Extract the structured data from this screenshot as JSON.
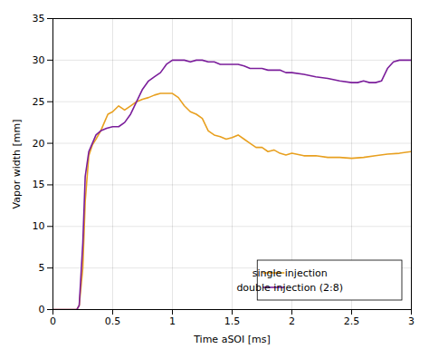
{
  "chart_data": {
    "type": "line",
    "xlabel": "Time aSOI [ms]",
    "ylabel": "Vapor width [mm]",
    "xlim": [
      0,
      3
    ],
    "ylim": [
      0,
      35
    ],
    "xticks": [
      0,
      0.5,
      1,
      1.5,
      2,
      2.5,
      3
    ],
    "yticks": [
      0,
      5,
      10,
      15,
      20,
      25,
      30,
      35
    ],
    "grid": true,
    "legend": "lower right",
    "series": [
      {
        "name": "single injection",
        "color": "#E8A020",
        "x": [
          0.0,
          0.05,
          0.1,
          0.15,
          0.2,
          0.22,
          0.25,
          0.27,
          0.3,
          0.33,
          0.36,
          0.4,
          0.43,
          0.46,
          0.5,
          0.55,
          0.6,
          0.65,
          0.7,
          0.75,
          0.8,
          0.85,
          0.9,
          0.95,
          1.0,
          1.05,
          1.1,
          1.15,
          1.2,
          1.25,
          1.3,
          1.35,
          1.4,
          1.45,
          1.5,
          1.55,
          1.6,
          1.65,
          1.7,
          1.75,
          1.8,
          1.85,
          1.9,
          1.95,
          2.0,
          2.1,
          2.2,
          2.3,
          2.4,
          2.5,
          2.6,
          2.7,
          2.8,
          2.9,
          3.0
        ],
        "values": [
          0.0,
          0.0,
          0.0,
          0.0,
          0.0,
          0.5,
          5.0,
          13.0,
          18.5,
          19.8,
          20.5,
          21.5,
          22.5,
          23.5,
          23.8,
          24.5,
          24.0,
          24.5,
          25.0,
          25.3,
          25.5,
          25.8,
          26.0,
          26.0,
          26.0,
          25.5,
          24.5,
          23.8,
          23.5,
          23.0,
          21.5,
          21.0,
          20.8,
          20.5,
          20.7,
          21.0,
          20.5,
          20.0,
          19.5,
          19.5,
          19.0,
          19.2,
          18.8,
          18.6,
          18.8,
          18.5,
          18.5,
          18.3,
          18.3,
          18.2,
          18.3,
          18.5,
          18.7,
          18.8,
          19.0
        ]
      },
      {
        "name": "double injection (2:8)",
        "color": "#7B1E9B",
        "x": [
          0.0,
          0.05,
          0.1,
          0.15,
          0.2,
          0.22,
          0.25,
          0.27,
          0.3,
          0.33,
          0.36,
          0.4,
          0.45,
          0.5,
          0.55,
          0.6,
          0.65,
          0.7,
          0.75,
          0.8,
          0.85,
          0.9,
          0.95,
          1.0,
          1.05,
          1.1,
          1.15,
          1.2,
          1.25,
          1.3,
          1.35,
          1.4,
          1.45,
          1.5,
          1.55,
          1.6,
          1.65,
          1.7,
          1.75,
          1.8,
          1.85,
          1.9,
          1.95,
          2.0,
          2.1,
          2.2,
          2.3,
          2.4,
          2.5,
          2.55,
          2.6,
          2.65,
          2.7,
          2.75,
          2.8,
          2.85,
          2.9,
          3.0
        ],
        "values": [
          0.0,
          0.0,
          0.0,
          0.0,
          0.0,
          0.5,
          8.0,
          16.0,
          19.0,
          20.0,
          21.0,
          21.5,
          21.8,
          22.0,
          22.0,
          22.5,
          23.5,
          25.0,
          26.5,
          27.5,
          28.0,
          28.5,
          29.5,
          30.0,
          30.0,
          30.0,
          29.8,
          30.0,
          30.0,
          29.8,
          29.8,
          29.5,
          29.5,
          29.5,
          29.5,
          29.3,
          29.0,
          29.0,
          29.0,
          28.8,
          28.8,
          28.8,
          28.5,
          28.5,
          28.3,
          28.0,
          27.8,
          27.5,
          27.3,
          27.3,
          27.5,
          27.3,
          27.3,
          27.5,
          29.0,
          29.8,
          30.0,
          30.0
        ]
      }
    ]
  }
}
